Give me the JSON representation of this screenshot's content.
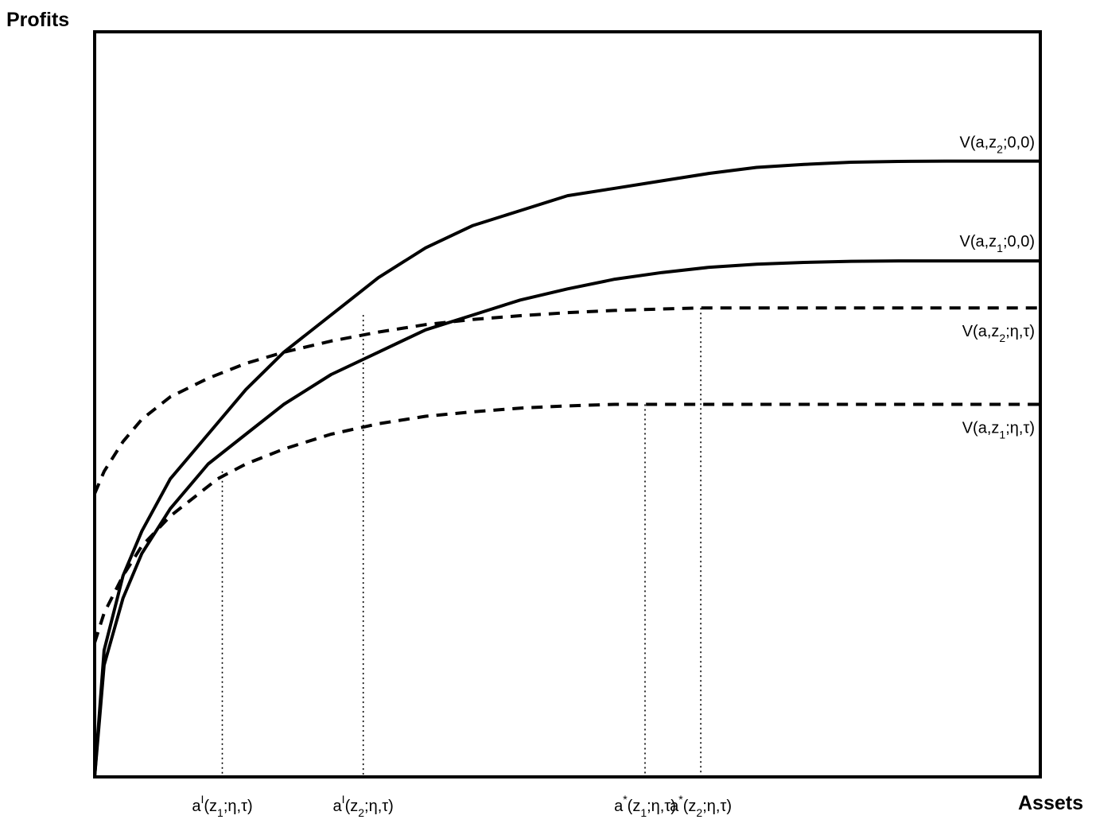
{
  "chart_data": {
    "type": "line",
    "title": "",
    "ylabel": "Profits",
    "xlabel": "Assets",
    "xlim": [
      0,
      1
    ],
    "ylim": [
      0,
      1
    ],
    "grid": false,
    "series": [
      {
        "key": "v2_00",
        "style": "solid",
        "color": "#000000",
        "label": {
          "pre": "V(a,z",
          "sub": "2",
          "post": ";0,0)"
        },
        "points": [
          [
            0,
            0
          ],
          [
            0.01,
            0.17
          ],
          [
            0.03,
            0.27
          ],
          [
            0.05,
            0.33
          ],
          [
            0.08,
            0.4
          ],
          [
            0.12,
            0.46
          ],
          [
            0.16,
            0.52
          ],
          [
            0.2,
            0.57
          ],
          [
            0.25,
            0.62
          ],
          [
            0.3,
            0.67
          ],
          [
            0.35,
            0.71
          ],
          [
            0.4,
            0.74
          ],
          [
            0.45,
            0.76
          ],
          [
            0.5,
            0.78
          ],
          [
            0.55,
            0.79
          ],
          [
            0.6,
            0.8
          ],
          [
            0.65,
            0.81
          ],
          [
            0.7,
            0.818
          ],
          [
            0.75,
            0.822
          ],
          [
            0.8,
            0.825
          ],
          [
            0.85,
            0.826
          ],
          [
            0.9,
            0.8265
          ],
          [
            0.95,
            0.8265
          ],
          [
            1.0,
            0.8265
          ]
        ]
      },
      {
        "key": "v1_00",
        "style": "solid",
        "color": "#000000",
        "label": {
          "pre": "V(a,z",
          "sub": "1",
          "post": ";0,0)"
        },
        "points": [
          [
            0,
            0
          ],
          [
            0.01,
            0.15
          ],
          [
            0.03,
            0.24
          ],
          [
            0.05,
            0.3
          ],
          [
            0.08,
            0.36
          ],
          [
            0.12,
            0.42
          ],
          [
            0.16,
            0.46
          ],
          [
            0.2,
            0.5
          ],
          [
            0.25,
            0.54
          ],
          [
            0.3,
            0.57
          ],
          [
            0.35,
            0.6
          ],
          [
            0.4,
            0.62
          ],
          [
            0.45,
            0.64
          ],
          [
            0.5,
            0.655
          ],
          [
            0.55,
            0.668
          ],
          [
            0.6,
            0.677
          ],
          [
            0.65,
            0.684
          ],
          [
            0.7,
            0.688
          ],
          [
            0.75,
            0.6905
          ],
          [
            0.8,
            0.692
          ],
          [
            0.85,
            0.6925
          ],
          [
            0.9,
            0.6925
          ],
          [
            0.95,
            0.6925
          ],
          [
            1.0,
            0.6925
          ]
        ]
      },
      {
        "key": "v2_eta",
        "style": "dashed",
        "color": "#000000",
        "label": {
          "pre": "V(a,z",
          "sub": "2",
          "post": ";η,τ)"
        },
        "points": [
          [
            0,
            0.38
          ],
          [
            0.01,
            0.41
          ],
          [
            0.03,
            0.45
          ],
          [
            0.05,
            0.48
          ],
          [
            0.08,
            0.51
          ],
          [
            0.12,
            0.535
          ],
          [
            0.16,
            0.555
          ],
          [
            0.2,
            0.57
          ],
          [
            0.25,
            0.585
          ],
          [
            0.3,
            0.597
          ],
          [
            0.35,
            0.607
          ],
          [
            0.4,
            0.614
          ],
          [
            0.45,
            0.619
          ],
          [
            0.5,
            0.623
          ],
          [
            0.55,
            0.626
          ],
          [
            0.6,
            0.628
          ],
          [
            0.64,
            0.6295
          ],
          [
            0.7,
            0.6295
          ],
          [
            0.8,
            0.6295
          ],
          [
            0.9,
            0.6295
          ],
          [
            1.0,
            0.6295
          ]
        ]
      },
      {
        "key": "v1_eta",
        "style": "dashed",
        "color": "#000000",
        "label": {
          "pre": "V(a,z",
          "sub": "1",
          "post": ";η,τ)"
        },
        "points": [
          [
            0,
            0.18
          ],
          [
            0.01,
            0.22
          ],
          [
            0.03,
            0.27
          ],
          [
            0.05,
            0.31
          ],
          [
            0.08,
            0.35
          ],
          [
            0.11,
            0.38
          ],
          [
            0.13,
            0.4
          ],
          [
            0.16,
            0.42
          ],
          [
            0.2,
            0.44
          ],
          [
            0.25,
            0.46
          ],
          [
            0.3,
            0.474
          ],
          [
            0.35,
            0.484
          ],
          [
            0.4,
            0.49
          ],
          [
            0.45,
            0.495
          ],
          [
            0.5,
            0.498
          ],
          [
            0.55,
            0.5
          ],
          [
            0.58,
            0.5
          ],
          [
            0.7,
            0.5
          ],
          [
            0.8,
            0.5
          ],
          [
            0.9,
            0.5
          ],
          [
            1.0,
            0.5
          ]
        ]
      }
    ],
    "markers": [
      {
        "key": "al1",
        "x": 0.135,
        "y": 0.41,
        "label": {
          "pre": "a",
          "sup": "I",
          "mid": "(z",
          "sub": "1",
          "post": ";η,τ)"
        }
      },
      {
        "key": "al2",
        "x": 0.284,
        "y": 0.62,
        "label": {
          "pre": "a",
          "sup": "I",
          "mid": "(z",
          "sub": "2",
          "post": ";η,τ)"
        }
      },
      {
        "key": "as1",
        "x": 0.582,
        "y": 0.5,
        "label": {
          "pre": "a",
          "sup": "*",
          "mid": "(z",
          "sub": "1",
          "post": ";η,τ)"
        }
      },
      {
        "key": "as2",
        "x": 0.641,
        "y": 0.6295,
        "label": {
          "pre": "a",
          "sup": "*",
          "mid": "(z",
          "sub": "2",
          "post": ";η,τ)"
        }
      }
    ]
  }
}
